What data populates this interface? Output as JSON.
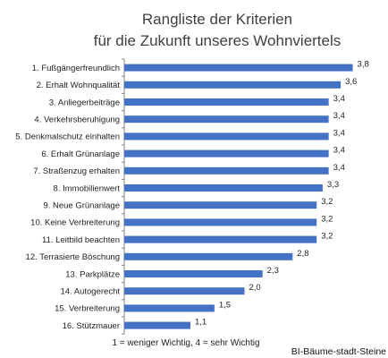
{
  "chart_data": {
    "type": "bar",
    "orientation": "horizontal",
    "title_lines": [
      "Rangliste der Kriterien",
      "für die Zukunft unseres Wohnviertels"
    ],
    "categories": [
      "1. Fußgängerfreundlich",
      "2. Erhalt Wohnqualität",
      "3. Anliegerbeiträge",
      "4. Verkehrsberuhigung",
      "5. Denkmalschutz einhalten",
      "6. Erhalt Grünanlage",
      "7. Straßenzug erhalten",
      "8. Immobilienwert",
      "9. Neue Grünanlage",
      "10. Keine Verbreiterung",
      "11. Leitbild beachten",
      "12. Terrasierte Böschung",
      "13. Parkplätze",
      "14. Autogerecht",
      "15. Verbreiterung",
      "16. Stützmauer"
    ],
    "values": [
      3.8,
      3.6,
      3.4,
      3.4,
      3.4,
      3.4,
      3.4,
      3.3,
      3.2,
      3.2,
      3.2,
      2.8,
      2.3,
      2.0,
      1.5,
      1.1
    ],
    "value_labels": [
      "3,8",
      "3,6",
      "3,4",
      "3,4",
      "3,4",
      "3,4",
      "3,4",
      "3,3",
      "3,2",
      "3,2",
      "3,2",
      "2,8",
      "2,3",
      "2,0",
      "1,5",
      "1,1"
    ],
    "xlim": [
      0,
      4
    ],
    "grid": false,
    "bar_color": "#4472C4",
    "note": "1 = weniger Wichtig, 4 = sehr Wichtig"
  },
  "credit": "BI-Bäume-stadt-Steine"
}
